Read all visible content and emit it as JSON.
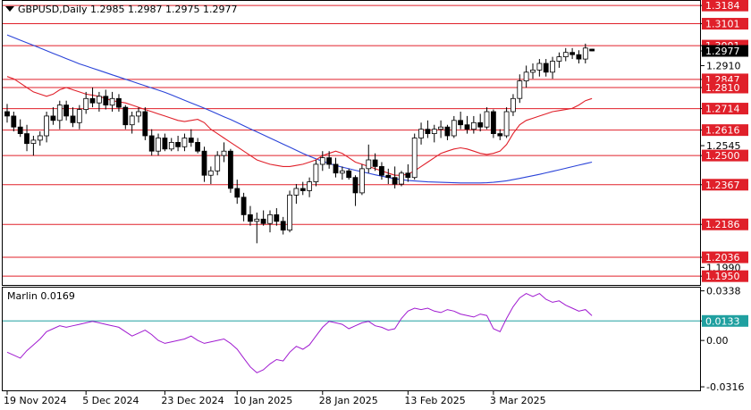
{
  "header": {
    "title": "GBPUSD,Daily  1.2985 1.2987 1.2975 1.2977"
  },
  "indicator": {
    "label": "Marlin 0.0169"
  },
  "colors": {
    "background": "#ffffff",
    "level_line": "#e0202a",
    "level_label_bg": "#e0202a",
    "ma_fast": "#e0202a",
    "ma_slow": "#2a43d8",
    "candle": "#000000",
    "oscillator": "#a01ad0",
    "osc_level": "#20a0a0",
    "current_price_bg": "#000000",
    "axis_text": "#000000"
  },
  "chart_data": [
    {
      "type": "candlestick",
      "symbol": "GBPUSD",
      "timeframe": "Daily",
      "ylim": [
        1.191,
        1.3205
      ],
      "price_ticks": [
        "1.3184",
        "1.3101",
        "1.3001",
        "1.2977",
        "1.2910",
        "1.2847",
        "1.2810",
        "1.2714",
        "1.2616",
        "1.2545",
        "1.2500",
        "1.2367",
        "1.2186",
        "1.2036",
        "1.1990",
        "1.1950"
      ],
      "x_ticks": [
        {
          "index": 0,
          "label": "19 Nov 2024"
        },
        {
          "index": 12,
          "label": "5 Dec 2024"
        },
        {
          "index": 24,
          "label": "23 Dec 2024"
        },
        {
          "index": 35,
          "label": "10 Jan 2025"
        },
        {
          "index": 48,
          "label": "28 Jan 2025"
        },
        {
          "index": 61,
          "label": "13 Feb 2025"
        },
        {
          "index": 74,
          "label": "3 Mar 2025"
        }
      ],
      "horizontal_levels": [
        {
          "value": 1.3184,
          "label": "1.3184"
        },
        {
          "value": 1.3101,
          "label": "1.3101"
        },
        {
          "value": 1.3001,
          "label": "1.3001"
        },
        {
          "value": 1.2847,
          "label": "1.2847"
        },
        {
          "value": 1.281,
          "label": "1.2810"
        },
        {
          "value": 1.2714,
          "label": "1.2714"
        },
        {
          "value": 1.2616,
          "label": "1.2616"
        },
        {
          "value": 1.25,
          "label": "1.2500"
        },
        {
          "value": 1.2367,
          "label": "1.2367"
        },
        {
          "value": 1.2186,
          "label": "1.2186"
        },
        {
          "value": 1.2036,
          "label": "1.2036"
        },
        {
          "value": 1.195,
          "label": "1.1950"
        }
      ],
      "current_price": {
        "value": 1.2977,
        "label": "1.2977"
      },
      "candles": [
        [
          1.27,
          1.2735,
          1.265,
          1.268
        ],
        [
          1.268,
          1.27,
          1.261,
          1.263
        ],
        [
          1.263,
          1.2665,
          1.2585,
          1.26
        ],
        [
          1.26,
          1.264,
          1.252,
          1.2555
        ],
        [
          1.2555,
          1.259,
          1.25,
          1.257
        ],
        [
          1.257,
          1.261,
          1.2545,
          1.259
        ],
        [
          1.259,
          1.27,
          1.256,
          1.268
        ],
        [
          1.268,
          1.272,
          1.264,
          1.266
        ],
        [
          1.266,
          1.275,
          1.262,
          1.273
        ],
        [
          1.273,
          1.275,
          1.266,
          1.268
        ],
        [
          1.268,
          1.272,
          1.263,
          1.265
        ],
        [
          1.265,
          1.273,
          1.262,
          1.271
        ],
        [
          1.271,
          1.279,
          1.269,
          1.276
        ],
        [
          1.276,
          1.281,
          1.272,
          1.274
        ],
        [
          1.274,
          1.279,
          1.27,
          1.277
        ],
        [
          1.277,
          1.28,
          1.271,
          1.273
        ],
        [
          1.273,
          1.279,
          1.27,
          1.276
        ],
        [
          1.276,
          1.278,
          1.27,
          1.272
        ],
        [
          1.272,
          1.273,
          1.262,
          1.264
        ],
        [
          1.264,
          1.27,
          1.26,
          1.268
        ],
        [
          1.268,
          1.272,
          1.265,
          1.27
        ],
        [
          1.27,
          1.272,
          1.257,
          1.259
        ],
        [
          1.259,
          1.262,
          1.25,
          1.252
        ],
        [
          1.252,
          1.26,
          1.25,
          1.258
        ],
        [
          1.258,
          1.26,
          1.252,
          1.253
        ],
        [
          1.253,
          1.258,
          1.252,
          1.256
        ],
        [
          1.256,
          1.259,
          1.252,
          1.254
        ],
        [
          1.254,
          1.26,
          1.252,
          1.258
        ],
        [
          1.258,
          1.262,
          1.254,
          1.256
        ],
        [
          1.256,
          1.258,
          1.251,
          1.252
        ],
        [
          1.252,
          1.254,
          1.238,
          1.241
        ],
        [
          1.241,
          1.245,
          1.237,
          1.243
        ],
        [
          1.243,
          1.252,
          1.241,
          1.25
        ],
        [
          1.25,
          1.256,
          1.247,
          1.252
        ],
        [
          1.252,
          1.253,
          1.233,
          1.235
        ],
        [
          1.235,
          1.239,
          1.228,
          1.231
        ],
        [
          1.231,
          1.233,
          1.22,
          1.223
        ],
        [
          1.223,
          1.227,
          1.218,
          1.22
        ],
        [
          1.22,
          1.224,
          1.21,
          1.221
        ],
        [
          1.221,
          1.225,
          1.218,
          1.219
        ],
        [
          1.219,
          1.225,
          1.215,
          1.223
        ],
        [
          1.223,
          1.226,
          1.218,
          1.22
        ],
        [
          1.22,
          1.222,
          1.214,
          1.216
        ],
        [
          1.216,
          1.234,
          1.215,
          1.232
        ],
        [
          1.232,
          1.237,
          1.228,
          1.235
        ],
        [
          1.235,
          1.238,
          1.232,
          1.234
        ],
        [
          1.234,
          1.24,
          1.231,
          1.238
        ],
        [
          1.238,
          1.248,
          1.236,
          1.246
        ],
        [
          1.246,
          1.252,
          1.243,
          1.249
        ],
        [
          1.249,
          1.252,
          1.244,
          1.246
        ],
        [
          1.246,
          1.249,
          1.24,
          1.242
        ],
        [
          1.242,
          1.245,
          1.239,
          1.243
        ],
        [
          1.243,
          1.244,
          1.239,
          1.24
        ],
        [
          1.24,
          1.241,
          1.227,
          1.233
        ],
        [
          1.233,
          1.246,
          1.232,
          1.244
        ],
        [
          1.244,
          1.255,
          1.242,
          1.248
        ],
        [
          1.248,
          1.251,
          1.243,
          1.245
        ],
        [
          1.245,
          1.247,
          1.239,
          1.241
        ],
        [
          1.241,
          1.244,
          1.237,
          1.24
        ],
        [
          1.24,
          1.245,
          1.235,
          1.237
        ],
        [
          1.237,
          1.243,
          1.236,
          1.242
        ],
        [
          1.242,
          1.246,
          1.238,
          1.24
        ],
        [
          1.24,
          1.26,
          1.239,
          1.258
        ],
        [
          1.258,
          1.265,
          1.255,
          1.262
        ],
        [
          1.262,
          1.266,
          1.258,
          1.26
        ],
        [
          1.26,
          1.264,
          1.256,
          1.262
        ],
        [
          1.262,
          1.266,
          1.258,
          1.263
        ],
        [
          1.263,
          1.264,
          1.257,
          1.259
        ],
        [
          1.259,
          1.268,
          1.258,
          1.266
        ],
        [
          1.266,
          1.27,
          1.262,
          1.264
        ],
        [
          1.264,
          1.268,
          1.26,
          1.262
        ],
        [
          1.262,
          1.268,
          1.26,
          1.265
        ],
        [
          1.265,
          1.269,
          1.261,
          1.263
        ],
        [
          1.263,
          1.272,
          1.262,
          1.27
        ],
        [
          1.27,
          1.271,
          1.258,
          1.26
        ],
        [
          1.26,
          1.262,
          1.257,
          1.259
        ],
        [
          1.259,
          1.272,
          1.258,
          1.27
        ],
        [
          1.27,
          1.278,
          1.268,
          1.276
        ],
        [
          1.276,
          1.287,
          1.274,
          1.284
        ],
        [
          1.284,
          1.291,
          1.281,
          1.288
        ],
        [
          1.288,
          1.292,
          1.285,
          1.289
        ],
        [
          1.289,
          1.294,
          1.286,
          1.292
        ],
        [
          1.292,
          1.294,
          1.286,
          1.288
        ],
        [
          1.288,
          1.295,
          1.285,
          1.293
        ],
        [
          1.293,
          1.297,
          1.29,
          1.295
        ],
        [
          1.295,
          1.299,
          1.293,
          1.297
        ],
        [
          1.297,
          1.299,
          1.294,
          1.296
        ],
        [
          1.296,
          1.298,
          1.292,
          1.294
        ],
        [
          1.294,
          1.301,
          1.292,
          1.299
        ],
        [
          1.2985,
          1.2987,
          1.2975,
          1.2977
        ]
      ],
      "ma_fast": [
        1.286,
        1.285,
        1.283,
        1.281,
        1.279,
        1.278,
        1.277,
        1.278,
        1.28,
        1.281,
        1.28,
        1.279,
        1.278,
        1.2775,
        1.277,
        1.276,
        1.275,
        1.2745,
        1.274,
        1.273,
        1.272,
        1.271,
        1.27,
        1.269,
        1.268,
        1.267,
        1.266,
        1.2655,
        1.266,
        1.2665,
        1.265,
        1.262,
        1.26,
        1.258,
        1.256,
        1.254,
        1.252,
        1.25,
        1.248,
        1.247,
        1.246,
        1.2455,
        1.245,
        1.245,
        1.2455,
        1.246,
        1.247,
        1.248,
        1.25,
        1.251,
        1.252,
        1.251,
        1.249,
        1.247,
        1.246,
        1.245,
        1.244,
        1.243,
        1.242,
        1.241,
        1.241,
        1.2415,
        1.243,
        1.245,
        1.247,
        1.249,
        1.251,
        1.252,
        1.253,
        1.2535,
        1.253,
        1.252,
        1.251,
        1.2505,
        1.251,
        1.252,
        1.255,
        1.26,
        1.264,
        1.266,
        1.267,
        1.268,
        1.269,
        1.27,
        1.2705,
        1.271,
        1.2715,
        1.273,
        1.275,
        1.276
      ],
      "ma_slow": [
        1.305,
        1.3038,
        1.3026,
        1.3014,
        1.3002,
        1.299,
        1.2978,
        1.2966,
        1.2954,
        1.2942,
        1.293,
        1.2918,
        1.2908,
        1.2898,
        1.2888,
        1.2878,
        1.2868,
        1.2858,
        1.2848,
        1.2838,
        1.2828,
        1.2818,
        1.2808,
        1.2798,
        1.2788,
        1.2776,
        1.2764,
        1.2752,
        1.274,
        1.2728,
        1.2716,
        1.2703,
        1.269,
        1.2677,
        1.2664,
        1.265,
        1.2636,
        1.2622,
        1.2608,
        1.2594,
        1.258,
        1.2566,
        1.2552,
        1.2538,
        1.2524,
        1.251,
        1.2497,
        1.2485,
        1.2474,
        1.2464,
        1.2455,
        1.2447,
        1.244,
        1.2433,
        1.2426,
        1.2419,
        1.2412,
        1.2406,
        1.24,
        1.2394,
        1.239,
        1.2386,
        1.2384,
        1.2382,
        1.238,
        1.2379,
        1.2378,
        1.2377,
        1.2376,
        1.2375,
        1.2375,
        1.2375,
        1.2375,
        1.2376,
        1.2378,
        1.2381,
        1.2385,
        1.239,
        1.2396,
        1.2402,
        1.2408,
        1.2414,
        1.2421,
        1.2428,
        1.2435,
        1.2442,
        1.2449,
        1.2456,
        1.2463,
        1.247
      ]
    },
    {
      "type": "line",
      "name": "Marlin",
      "ylim": [
        -0.034,
        0.036
      ],
      "y_ticks": [
        "0.0338",
        "0.0133",
        "0.00",
        "-0.0316"
      ],
      "levels": [
        {
          "value": 0.0133,
          "label": "0.0133"
        }
      ],
      "values": [
        -0.008,
        -0.01,
        -0.012,
        -0.007,
        -0.003,
        0.001,
        0.006,
        0.008,
        0.01,
        0.009,
        0.01,
        0.011,
        0.012,
        0.013,
        0.012,
        0.011,
        0.01,
        0.009,
        0.006,
        0.003,
        0.005,
        0.007,
        0.004,
        0.0,
        -0.002,
        -0.001,
        0.0,
        0.001,
        0.003,
        0.0,
        -0.002,
        -0.001,
        0.0,
        0.001,
        -0.002,
        -0.006,
        -0.012,
        -0.018,
        -0.022,
        -0.02,
        -0.016,
        -0.013,
        -0.014,
        -0.008,
        -0.004,
        -0.006,
        -0.003,
        0.003,
        0.009,
        0.013,
        0.012,
        0.011,
        0.008,
        0.01,
        0.012,
        0.013,
        0.01,
        0.009,
        0.007,
        0.008,
        0.015,
        0.02,
        0.022,
        0.021,
        0.022,
        0.02,
        0.019,
        0.021,
        0.02,
        0.018,
        0.017,
        0.016,
        0.018,
        0.017,
        0.008,
        0.006,
        0.015,
        0.023,
        0.029,
        0.032,
        0.03,
        0.032,
        0.028,
        0.026,
        0.027,
        0.024,
        0.022,
        0.02,
        0.021,
        0.0169
      ]
    }
  ]
}
